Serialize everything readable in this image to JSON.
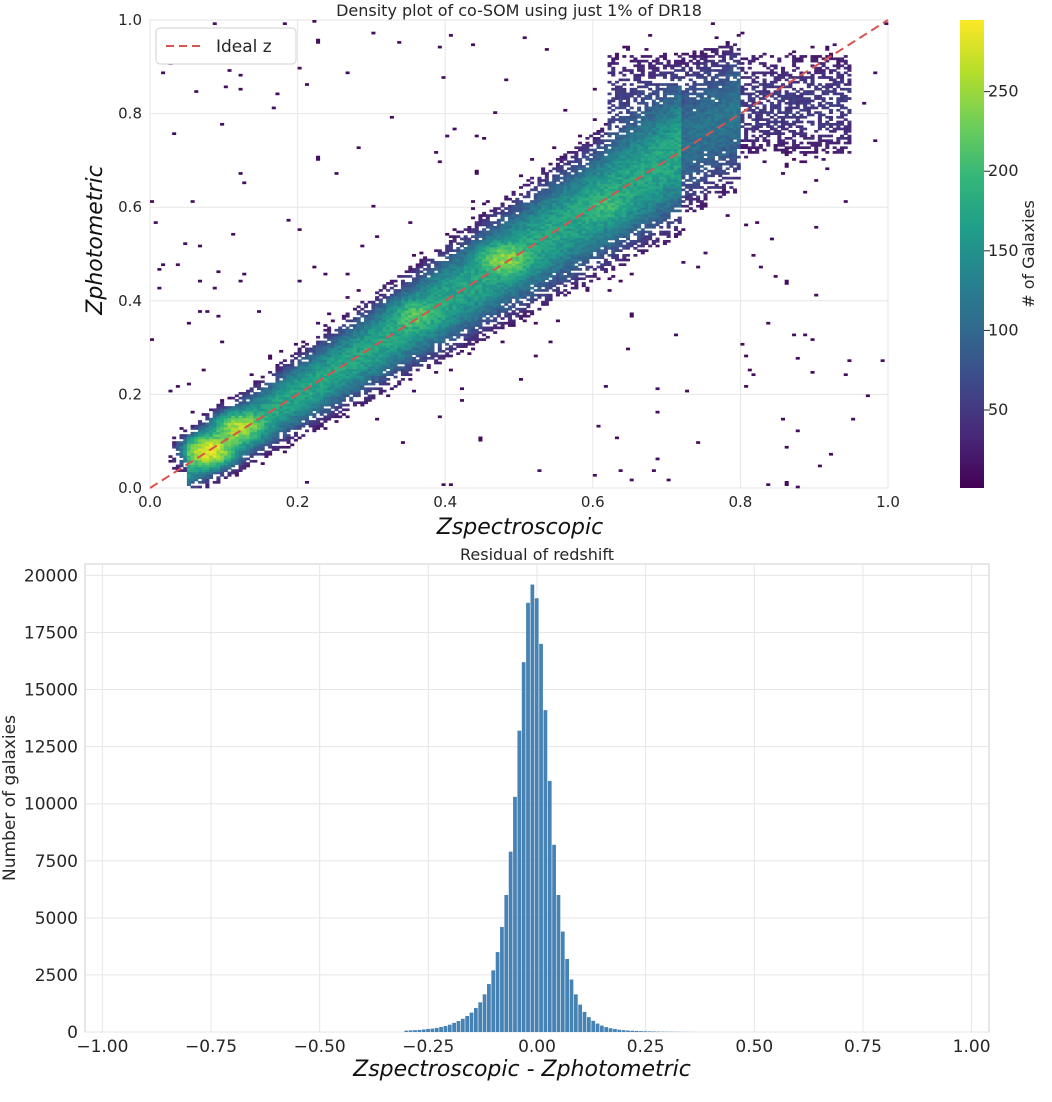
{
  "colors": {
    "grid": "#e6e6e6",
    "axes_edge": "#cfcfcf",
    "ideal_line": "#d9534f",
    "bars": "#4682b4",
    "colormap": [
      "#440154",
      "#482878",
      "#3e4989",
      "#31688e",
      "#26828e",
      "#1f9e89",
      "#35b779",
      "#6ece58",
      "#b5de2b",
      "#fde725"
    ]
  },
  "chart_data": [
    {
      "type": "heatmap",
      "title": "Density plot of co-SOM using just 1% of DR18",
      "xlabel": "Zspectroscopic",
      "ylabel": "Zphotometric",
      "xlim": [
        0.0,
        1.0
      ],
      "ylim": [
        0.0,
        1.0
      ],
      "xticks": [
        "0.0",
        "0.2",
        "0.4",
        "0.6",
        "0.8",
        "1.0"
      ],
      "yticks": [
        "0.0",
        "0.2",
        "0.4",
        "0.6",
        "0.8",
        "1.0"
      ],
      "grid": true,
      "legend": {
        "position": "top-left",
        "entries": [
          "Ideal z"
        ]
      },
      "ideal_line": {
        "x": [
          0.0,
          1.0
        ],
        "y": [
          0.0,
          1.0
        ],
        "style": "dashed"
      },
      "colorbar": {
        "label": "# of Galaxies",
        "range": [
          1,
          295
        ],
        "ticks": [
          "50",
          "100",
          "150",
          "200",
          "250"
        ],
        "tick_values": [
          50,
          100,
          150,
          200,
          250
        ],
        "colormap": "viridis"
      },
      "density_peaks": [
        {
          "x": 0.08,
          "y": 0.08,
          "count": 280
        },
        {
          "x": 0.12,
          "y": 0.13,
          "count": 190
        },
        {
          "x": 0.48,
          "y": 0.49,
          "count": 150
        },
        {
          "x": 0.36,
          "y": 0.37,
          "count": 70
        },
        {
          "x": 0.62,
          "y": 0.6,
          "count": 40
        }
      ]
    },
    {
      "type": "bar",
      "title": "Residual of redshift",
      "xlabel": "Zspectroscopic - Zphotometric",
      "ylabel": "Number of galaxies",
      "xlim": [
        -1.04,
        1.04
      ],
      "ylim": [
        0,
        20500
      ],
      "xticks": [
        "−1.00",
        "−0.75",
        "−0.50",
        "−0.25",
        "0.00",
        "0.25",
        "0.50",
        "0.75",
        "1.00"
      ],
      "xtick_values": [
        -1.0,
        -0.75,
        -0.5,
        -0.25,
        0.0,
        0.25,
        0.5,
        0.75,
        1.0
      ],
      "yticks": [
        "0",
        "2500",
        "5000",
        "7500",
        "10000",
        "12500",
        "15000",
        "17500",
        "20000"
      ],
      "ytick_values": [
        0,
        2500,
        5000,
        7500,
        10000,
        12500,
        15000,
        17500,
        20000
      ],
      "grid": true,
      "bin_width": 0.01,
      "x": [
        -0.3,
        -0.29,
        -0.28,
        -0.27,
        -0.26,
        -0.25,
        -0.24,
        -0.23,
        -0.22,
        -0.21,
        -0.2,
        -0.19,
        -0.18,
        -0.17,
        -0.16,
        -0.15,
        -0.14,
        -0.13,
        -0.12,
        -0.11,
        -0.1,
        -0.09,
        -0.08,
        -0.07,
        -0.06,
        -0.05,
        -0.04,
        -0.03,
        -0.02,
        -0.01,
        0.0,
        0.01,
        0.02,
        0.03,
        0.04,
        0.05,
        0.06,
        0.07,
        0.08,
        0.09,
        0.1,
        0.11,
        0.12,
        0.13,
        0.14,
        0.15,
        0.16,
        0.17,
        0.18,
        0.19,
        0.2,
        0.21,
        0.22,
        0.23,
        0.24,
        0.25,
        0.26,
        0.27,
        0.28,
        0.29,
        0.3,
        0.31,
        0.32,
        0.33,
        0.34,
        0.35,
        0.36
      ],
      "values": [
        60,
        70,
        80,
        90,
        110,
        130,
        150,
        180,
        220,
        260,
        320,
        400,
        480,
        580,
        700,
        850,
        1050,
        1300,
        1650,
        2100,
        2700,
        3500,
        4600,
        6000,
        7900,
        10300,
        13200,
        16200,
        18800,
        19600,
        19000,
        17000,
        14100,
        11000,
        8200,
        6000,
        4400,
        3200,
        2300,
        1650,
        1200,
        880,
        650,
        490,
        370,
        280,
        215,
        165,
        130,
        100,
        80,
        65,
        55,
        45,
        38,
        32,
        27,
        22,
        18,
        15,
        12,
        10,
        8,
        6,
        5,
        4,
        3
      ]
    }
  ]
}
